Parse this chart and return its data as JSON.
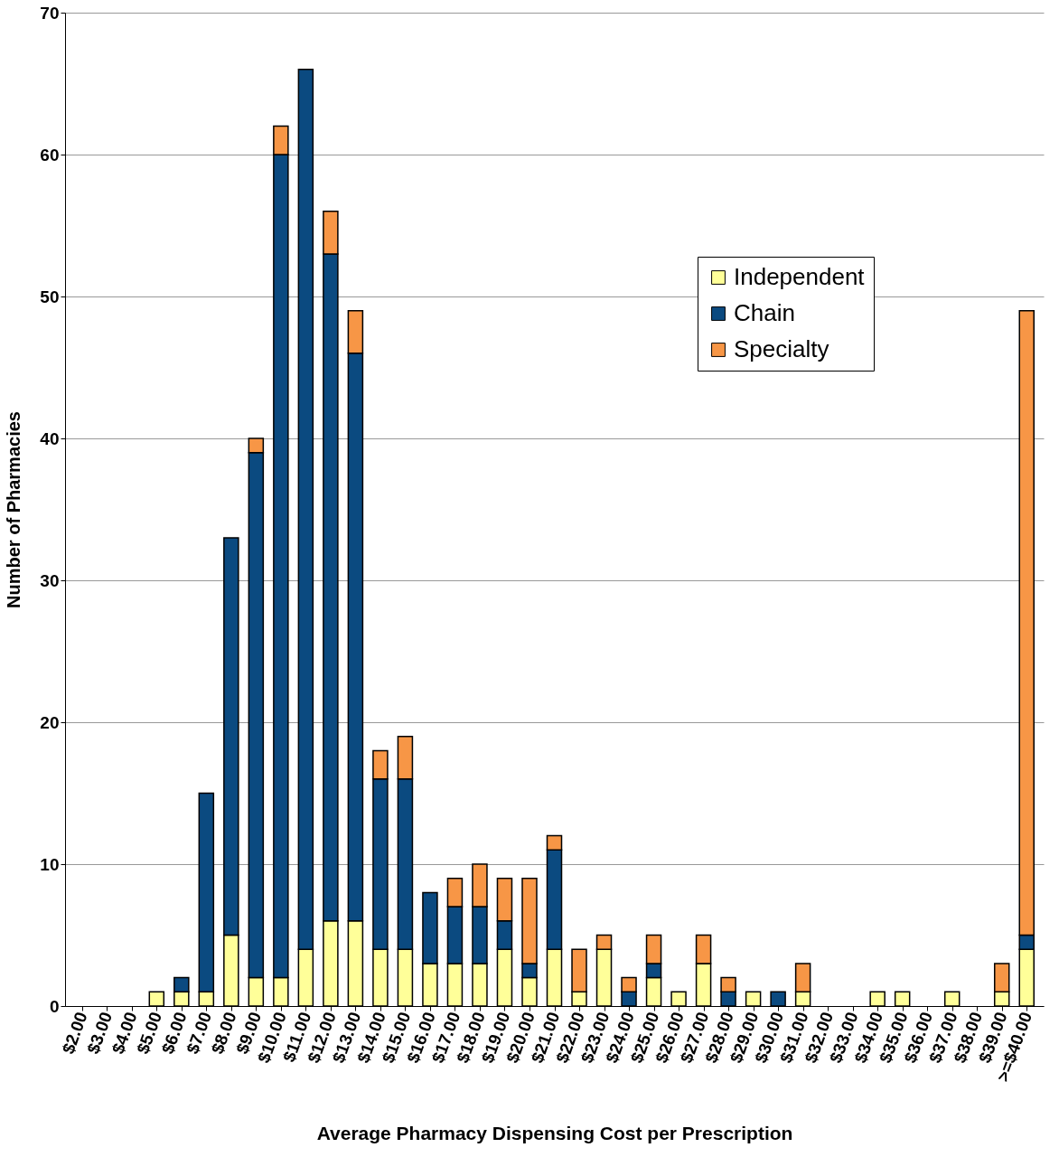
{
  "chart_data": {
    "type": "bar",
    "stacked": true,
    "xlabel": "Average Pharmacy Dispensing Cost per Prescription",
    "ylabel": "Number of Pharmacies",
    "categories": [
      "$2.00",
      "$3.00",
      "$4.00",
      "$5.00",
      "$6.00",
      "$7.00",
      "$8.00",
      "$9.00",
      "$10.00",
      "$11.00",
      "$12.00",
      "$13.00",
      "$14.00",
      "$15.00",
      "$16.00",
      "$17.00",
      "$18.00",
      "$19.00",
      "$20.00",
      "$21.00",
      "$22.00",
      "$23.00",
      "$24.00",
      "$25.00",
      "$26.00",
      "$27.00",
      "$28.00",
      "$29.00",
      "$30.00",
      "$31.00",
      "$32.00",
      "$33.00",
      "$34.00",
      "$35.00",
      "$36.00",
      "$37.00",
      "$38.00",
      "$39.00",
      ">=$40.00"
    ],
    "series": [
      {
        "name": "Independent",
        "color": "#ffff99",
        "values": [
          0,
          0,
          0,
          1,
          1,
          1,
          5,
          2,
          2,
          4,
          6,
          6,
          4,
          4,
          3,
          3,
          3,
          4,
          2,
          4,
          1,
          4,
          0,
          2,
          1,
          3,
          0,
          1,
          0,
          1,
          0,
          0,
          1,
          1,
          0,
          1,
          0,
          1,
          4
        ]
      },
      {
        "name": "Chain",
        "color": "#0b4a80",
        "values": [
          0,
          0,
          0,
          0,
          1,
          14,
          28,
          37,
          58,
          62,
          47,
          40,
          12,
          12,
          5,
          4,
          4,
          2,
          1,
          7,
          0,
          0,
          1,
          1,
          0,
          0,
          1,
          0,
          1,
          0,
          0,
          0,
          0,
          0,
          0,
          0,
          0,
          0,
          1
        ]
      },
      {
        "name": "Specialty",
        "color": "#f79646",
        "values": [
          0,
          0,
          0,
          0,
          0,
          0,
          0,
          1,
          2,
          0,
          3,
          3,
          2,
          3,
          0,
          2,
          3,
          3,
          6,
          1,
          3,
          1,
          1,
          2,
          0,
          2,
          1,
          0,
          0,
          2,
          0,
          0,
          0,
          0,
          0,
          0,
          0,
          2,
          44
        ]
      }
    ],
    "ylim": [
      0,
      70
    ],
    "yticks": [
      0,
      10,
      20,
      30,
      40,
      50,
      60,
      70
    ],
    "grid": "y",
    "legend": "top right"
  }
}
